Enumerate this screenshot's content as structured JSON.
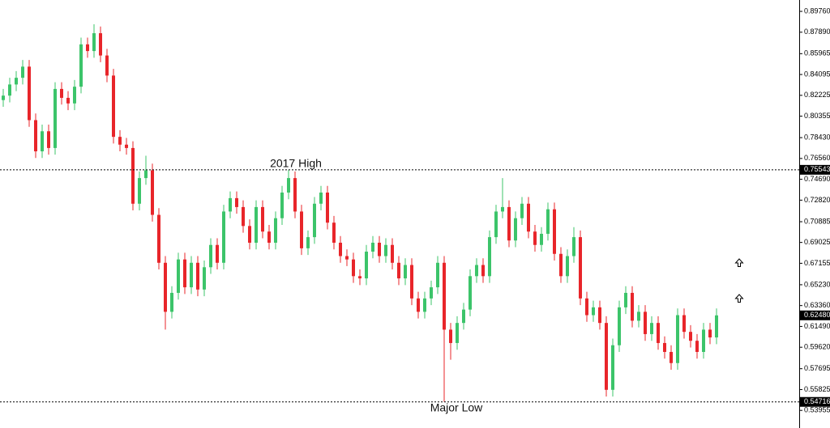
{
  "chart_data": {
    "type": "candlestick",
    "up_color": "#3cc46a",
    "down_color": "#e8252a",
    "ylim": [
      0.5339,
      0.9078
    ],
    "yticks": [
      {
        "value": 0.8976,
        "label": "0.89760"
      },
      {
        "value": 0.8789,
        "label": "0.87890"
      },
      0.85965,
      0.84095,
      0.82225,
      0.80355,
      {
        "value": 0.7843,
        "label": "0.78430"
      },
      {
        "value": 0.7656,
        "label": "0.76560"
      },
      {
        "value": 0.7469,
        "label": "0.74690"
      },
      {
        "value": 0.7282,
        "label": "0.72820"
      },
      0.70885,
      0.69025,
      0.67155,
      {
        "value": 0.6523,
        "label": "0.65230"
      },
      {
        "value": 0.6336,
        "label": "0.63360"
      },
      {
        "value": 0.6149,
        "label": "0.61490"
      },
      {
        "value": 0.5962,
        "label": "0.59620"
      },
      0.57695,
      0.55825,
      0.53955
    ],
    "price_tags": [
      0.75543,
      {
        "value": 0.6248,
        "label": "0.62480"
      },
      0.54716
    ],
    "annotations": [
      {
        "text": "2017 High",
        "value": 0.75543
      },
      {
        "text": "Major Low",
        "value": 0.54716
      }
    ],
    "open": [
      0.818,
      0.822,
      0.832,
      0.838,
      0.848,
      0.8,
      0.772,
      0.79,
      0.775,
      0.828,
      0.82,
      0.815,
      0.83,
      0.868,
      0.862,
      0.878,
      0.858,
      0.84,
      0.785,
      0.778,
      0.775,
      0.725,
      0.748,
      0.755,
      0.715,
      0.672,
      0.628,
      0.645,
      0.675,
      0.65,
      0.672,
      0.648,
      0.668,
      0.688,
      0.672,
      0.718,
      0.73,
      0.722,
      0.705,
      0.69,
      0.722,
      0.7,
      0.69,
      0.712,
      0.735,
      0.748,
      0.718,
      0.685,
      0.695,
      0.725,
      0.735,
      0.708,
      0.69,
      0.678,
      0.675,
      0.66,
      0.658,
      0.682,
      0.69,
      0.678,
      0.688,
      0.672,
      0.658,
      0.67,
      0.64,
      0.628,
      0.64,
      0.65,
      0.672,
      0.612,
      0.6,
      0.618,
      0.63,
      0.66,
      0.67,
      0.66,
      0.695,
      0.718,
      0.722,
      0.692,
      0.712,
      0.725,
      0.7,
      0.688,
      0.698,
      0.72,
      0.68,
      0.66,
      0.678,
      0.695,
      0.64,
      0.625,
      0.632,
      0.618,
      0.558,
      0.598,
      0.632,
      0.645,
      0.62,
      0.628,
      0.608,
      0.618,
      0.6,
      0.592,
      0.582,
      0.625,
      0.61,
      0.602,
      0.592,
      0.612,
      0.605
    ],
    "high": [
      0.828,
      0.838,
      0.844,
      0.854,
      0.854,
      0.806,
      0.796,
      0.796,
      0.834,
      0.834,
      0.826,
      0.836,
      0.874,
      0.874,
      0.886,
      0.884,
      0.864,
      0.846,
      0.791,
      0.784,
      0.781,
      0.754,
      0.768,
      0.761,
      0.721,
      0.678,
      0.651,
      0.681,
      0.681,
      0.678,
      0.678,
      0.674,
      0.694,
      0.694,
      0.724,
      0.736,
      0.736,
      0.728,
      0.711,
      0.728,
      0.728,
      0.706,
      0.718,
      0.741,
      0.7554,
      0.754,
      0.724,
      0.701,
      0.731,
      0.741,
      0.741,
      0.714,
      0.696,
      0.684,
      0.681,
      0.666,
      0.688,
      0.696,
      0.696,
      0.694,
      0.694,
      0.678,
      0.676,
      0.676,
      0.646,
      0.646,
      0.656,
      0.678,
      0.678,
      0.618,
      0.624,
      0.636,
      0.666,
      0.676,
      0.676,
      0.701,
      0.724,
      0.748,
      0.728,
      0.718,
      0.731,
      0.731,
      0.706,
      0.704,
      0.726,
      0.726,
      0.686,
      0.684,
      0.704,
      0.701,
      0.646,
      0.638,
      0.638,
      0.624,
      0.604,
      0.638,
      0.651,
      0.651,
      0.634,
      0.634,
      0.624,
      0.624,
      0.606,
      0.598,
      0.631,
      0.631,
      0.616,
      0.608,
      0.618,
      0.618,
      0.631
    ],
    "low": [
      0.812,
      0.816,
      0.826,
      0.832,
      0.794,
      0.766,
      0.766,
      0.769,
      0.769,
      0.814,
      0.809,
      0.809,
      0.824,
      0.856,
      0.856,
      0.852,
      0.834,
      0.779,
      0.772,
      0.769,
      0.719,
      0.719,
      0.742,
      0.709,
      0.666,
      0.612,
      0.622,
      0.639,
      0.644,
      0.644,
      0.642,
      0.642,
      0.662,
      0.666,
      0.666,
      0.712,
      0.716,
      0.699,
      0.684,
      0.684,
      0.694,
      0.684,
      0.684,
      0.706,
      0.729,
      0.712,
      0.679,
      0.679,
      0.689,
      0.719,
      0.702,
      0.684,
      0.672,
      0.669,
      0.654,
      0.652,
      0.652,
      0.676,
      0.672,
      0.672,
      0.666,
      0.652,
      0.652,
      0.634,
      0.622,
      0.622,
      0.634,
      0.644,
      0.5472,
      0.585,
      0.594,
      0.612,
      0.624,
      0.654,
      0.654,
      0.654,
      0.689,
      0.712,
      0.686,
      0.686,
      0.706,
      0.694,
      0.682,
      0.682,
      0.692,
      0.674,
      0.654,
      0.654,
      0.672,
      0.634,
      0.619,
      0.619,
      0.612,
      0.552,
      0.552,
      0.592,
      0.626,
      0.614,
      0.614,
      0.602,
      0.602,
      0.594,
      0.586,
      0.576,
      0.576,
      0.604,
      0.596,
      0.586,
      0.586,
      0.599,
      0.599
    ],
    "close": [
      0.822,
      0.832,
      0.838,
      0.848,
      0.8,
      0.772,
      0.79,
      0.775,
      0.828,
      0.82,
      0.815,
      0.83,
      0.868,
      0.862,
      0.878,
      0.858,
      0.84,
      0.785,
      0.778,
      0.775,
      0.725,
      0.748,
      0.755,
      0.715,
      0.672,
      0.628,
      0.645,
      0.675,
      0.65,
      0.672,
      0.648,
      0.668,
      0.688,
      0.672,
      0.718,
      0.73,
      0.722,
      0.705,
      0.69,
      0.722,
      0.7,
      0.69,
      0.712,
      0.735,
      0.748,
      0.718,
      0.685,
      0.695,
      0.725,
      0.735,
      0.708,
      0.69,
      0.678,
      0.675,
      0.66,
      0.658,
      0.682,
      0.69,
      0.678,
      0.688,
      0.672,
      0.658,
      0.67,
      0.64,
      0.628,
      0.64,
      0.65,
      0.672,
      0.612,
      0.6,
      0.618,
      0.63,
      0.66,
      0.67,
      0.66,
      0.695,
      0.718,
      0.722,
      0.692,
      0.712,
      0.725,
      0.7,
      0.688,
      0.698,
      0.72,
      0.68,
      0.66,
      0.678,
      0.695,
      0.64,
      0.625,
      0.632,
      0.618,
      0.558,
      0.598,
      0.632,
      0.645,
      0.62,
      0.628,
      0.608,
      0.618,
      0.6,
      0.592,
      0.582,
      0.625,
      0.61,
      0.602,
      0.592,
      0.612,
      0.605,
      0.6248
    ]
  }
}
